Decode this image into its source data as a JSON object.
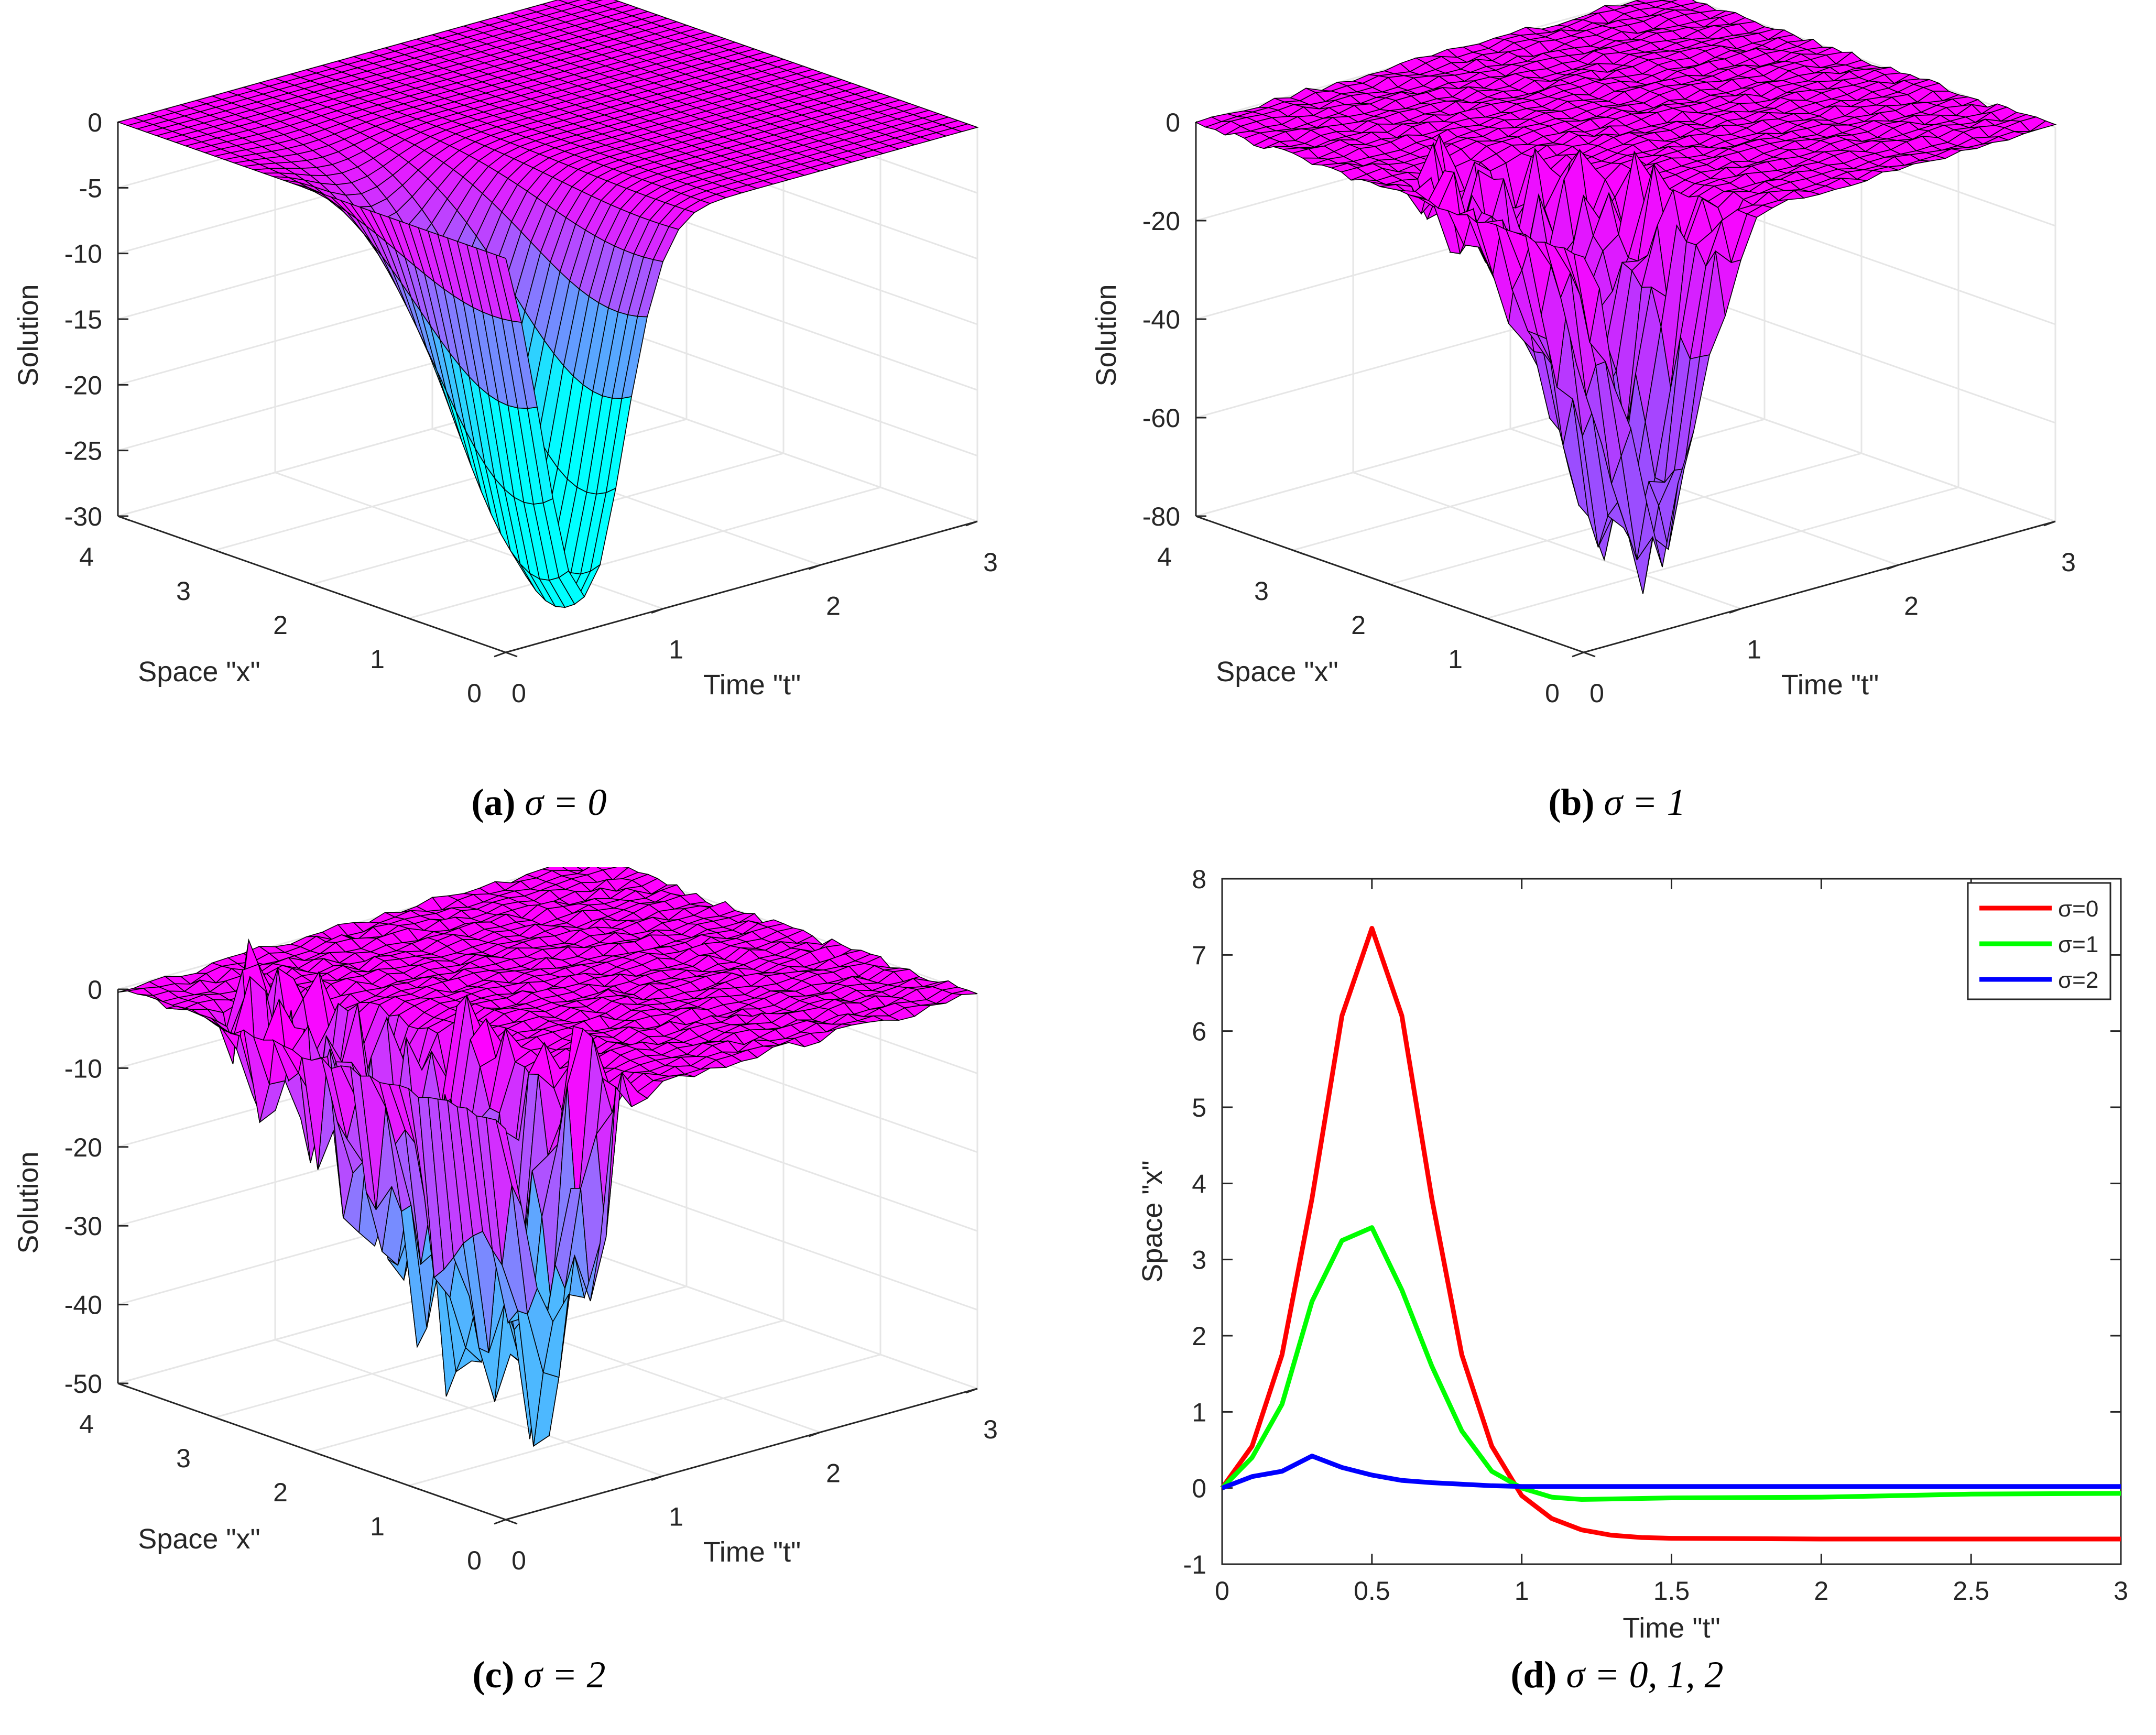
{
  "chart_data": [
    {
      "type": "surface",
      "panel": "a",
      "title": "",
      "zlabel": "Solution",
      "xlabel": "Time \"t\"",
      "ylabel": "Space \"x\"",
      "zlim": [
        -30,
        0
      ],
      "zticks": [
        "0",
        "-5",
        "-10",
        "-15",
        "-20",
        "-25",
        "-30"
      ],
      "xticks": [
        "0",
        "1",
        "2",
        "3"
      ],
      "yticks": [
        "0",
        "1",
        "2",
        "3",
        "4"
      ],
      "caption_label": "(a)",
      "caption_math": "σ = 0",
      "colors": {
        "top": "#ff00ff",
        "low": "#00ffff"
      }
    },
    {
      "type": "surface",
      "panel": "b",
      "zlabel": "Solution",
      "xlabel": "Time \"t\"",
      "ylabel": "Space \"x\"",
      "zlim": [
        -80,
        0
      ],
      "zticks": [
        "0",
        "-20",
        "-40",
        "-60",
        "-80"
      ],
      "xticks": [
        "0",
        "1",
        "2",
        "3"
      ],
      "yticks": [
        "0",
        "1",
        "2",
        "3",
        "4"
      ],
      "caption_label": "(b)",
      "caption_math": "σ = 1",
      "colors": {
        "top": "#ff00ff",
        "low": "#9b4dff"
      }
    },
    {
      "type": "surface",
      "panel": "c",
      "zlabel": "Solution",
      "xlabel": "Time \"t\"",
      "ylabel": "Space \"x\"",
      "zlim": [
        -50,
        0
      ],
      "zticks": [
        "0",
        "-10",
        "-20",
        "-30",
        "-40",
        "-50"
      ],
      "xticks": [
        "0",
        "1",
        "2",
        "3"
      ],
      "yticks": [
        "0",
        "1",
        "2",
        "3",
        "4"
      ],
      "caption_label": "(c)",
      "caption_math": "σ = 2",
      "colors": {
        "top": "#ff00ff",
        "low": "#4db8ff"
      }
    },
    {
      "type": "line",
      "panel": "d",
      "xlabel": "Time \"t\"",
      "ylabel": "Space \"x\"",
      "xlim": [
        0,
        3
      ],
      "ylim": [
        -1,
        8
      ],
      "xticks": [
        0,
        0.5,
        1,
        1.5,
        2,
        2.5,
        3
      ],
      "xtick_labels": [
        "0",
        "0.5",
        "1",
        "1.5",
        "2",
        "2.5",
        "3"
      ],
      "yticks": [
        -1,
        0,
        1,
        2,
        3,
        4,
        5,
        6,
        7,
        8
      ],
      "ytick_labels": [
        "-1",
        "0",
        "1",
        "2",
        "3",
        "4",
        "5",
        "6",
        "7",
        "8"
      ],
      "legend_position": "top-right",
      "caption_label": "(d)",
      "caption_math": "σ = 0, 1, 2",
      "series": [
        {
          "name": "σ=0",
          "color": "#ff0000",
          "x": [
            0,
            0.1,
            0.2,
            0.3,
            0.4,
            0.5,
            0.6,
            0.7,
            0.8,
            0.9,
            1.0,
            1.1,
            1.2,
            1.3,
            1.4,
            1.5,
            2.0,
            2.5,
            3.0
          ],
          "y": [
            0,
            0.55,
            1.75,
            3.8,
            6.2,
            7.35,
            6.2,
            3.8,
            1.75,
            0.55,
            -0.1,
            -0.4,
            -0.55,
            -0.62,
            -0.65,
            -0.66,
            -0.67,
            -0.67,
            -0.67
          ]
        },
        {
          "name": "σ=1",
          "color": "#00ff00",
          "x": [
            0,
            0.1,
            0.2,
            0.3,
            0.4,
            0.5,
            0.6,
            0.7,
            0.8,
            0.9,
            1.0,
            1.1,
            1.2,
            1.5,
            2.0,
            2.5,
            3.0
          ],
          "y": [
            0,
            0.4,
            1.1,
            2.45,
            3.25,
            3.42,
            2.6,
            1.6,
            0.75,
            0.22,
            0.0,
            -0.12,
            -0.15,
            -0.13,
            -0.12,
            -0.08,
            -0.07
          ]
        },
        {
          "name": "σ=2",
          "color": "#0000ff",
          "x": [
            0,
            0.1,
            0.2,
            0.3,
            0.4,
            0.5,
            0.6,
            0.7,
            0.8,
            0.9,
            1.0,
            1.5,
            2.0,
            2.5,
            3.0
          ],
          "y": [
            0,
            0.15,
            0.22,
            0.42,
            0.27,
            0.17,
            0.1,
            0.07,
            0.05,
            0.03,
            0.02,
            0.02,
            0.02,
            0.02,
            0.02
          ]
        }
      ]
    }
  ]
}
